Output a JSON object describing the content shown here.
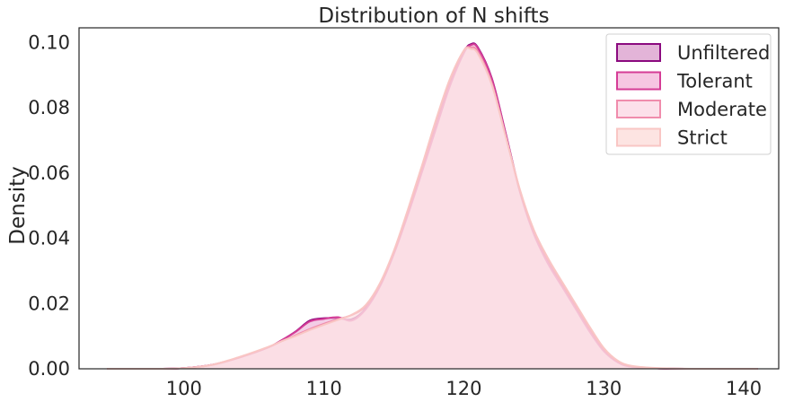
{
  "chart_data": {
    "type": "area",
    "title": "Distribution of N shifts",
    "xlabel": "",
    "ylabel": "Density",
    "xlim": [
      92.5,
      142.5
    ],
    "ylim": [
      0,
      0.1045
    ],
    "xticks": [
      100,
      110,
      120,
      130,
      140
    ],
    "yticks": [
      0.0,
      0.02,
      0.04,
      0.06,
      0.08,
      0.1
    ],
    "ytick_labels": [
      "0.00",
      "0.02",
      "0.04",
      "0.06",
      "0.08",
      "0.10"
    ],
    "grid": false,
    "legend_position": "top-right",
    "x": [
      94.5,
      98,
      100,
      102,
      104,
      106,
      107,
      108,
      109,
      110,
      111,
      112,
      113,
      114,
      115,
      116,
      117,
      118,
      119,
      120,
      120.5,
      121,
      122,
      123,
      124,
      125,
      126,
      127,
      128,
      129,
      130,
      131,
      132,
      134,
      137,
      141
    ],
    "series": [
      {
        "name": "Unfiltered",
        "color": "#8b0a7f",
        "fill": "#e3b4d8",
        "values": [
          0,
          0,
          0.0002,
          0.0012,
          0.0035,
          0.0065,
          0.0088,
          0.0115,
          0.0148,
          0.0155,
          0.0155,
          0.0152,
          0.0185,
          0.0255,
          0.0355,
          0.0475,
          0.0605,
          0.0738,
          0.0868,
          0.097,
          0.0995,
          0.0985,
          0.089,
          0.072,
          0.0545,
          0.0415,
          0.0325,
          0.0255,
          0.0185,
          0.0115,
          0.0055,
          0.002,
          0.0006,
          0.0001,
          0,
          0
        ]
      },
      {
        "name": "Tolerant",
        "color": "#d53c96",
        "fill": "#f6c6e2",
        "values": [
          0,
          0,
          0.0002,
          0.0012,
          0.0035,
          0.0065,
          0.0088,
          0.0114,
          0.0145,
          0.0153,
          0.0158,
          0.0148,
          0.0183,
          0.0252,
          0.0352,
          0.0472,
          0.0602,
          0.0735,
          0.0866,
          0.0968,
          0.0992,
          0.0983,
          0.0888,
          0.0718,
          0.0543,
          0.0413,
          0.0323,
          0.0253,
          0.0183,
          0.0113,
          0.0054,
          0.002,
          0.0006,
          0.0001,
          0,
          0
        ]
      },
      {
        "name": "Moderate",
        "color": "#f08cac",
        "fill": "#fce0ea",
        "values": [
          0,
          0,
          0.0002,
          0.0012,
          0.0036,
          0.0066,
          0.0085,
          0.0103,
          0.0122,
          0.0138,
          0.0152,
          0.0165,
          0.0192,
          0.0258,
          0.0358,
          0.0482,
          0.0615,
          0.0755,
          0.0882,
          0.0975,
          0.0985,
          0.0972,
          0.0875,
          0.0712,
          0.0548,
          0.0422,
          0.0335,
          0.0262,
          0.0192,
          0.0122,
          0.006,
          0.0023,
          0.0008,
          0.0001,
          0,
          0
        ]
      },
      {
        "name": "Strict",
        "color": "#f9c6c4",
        "fill": "#fde4e2",
        "values": [
          0,
          0,
          0.0002,
          0.0012,
          0.0037,
          0.0067,
          0.0085,
          0.0101,
          0.0119,
          0.0135,
          0.015,
          0.0166,
          0.0196,
          0.0262,
          0.0362,
          0.0488,
          0.0622,
          0.0762,
          0.0888,
          0.0975,
          0.098,
          0.0966,
          0.087,
          0.071,
          0.055,
          0.0426,
          0.034,
          0.0268,
          0.0198,
          0.0128,
          0.0064,
          0.0025,
          0.0009,
          0.0002,
          0,
          0
        ]
      }
    ]
  }
}
